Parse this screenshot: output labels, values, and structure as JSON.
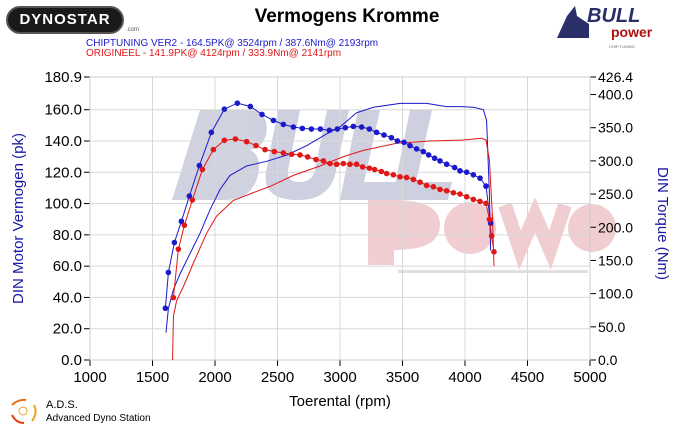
{
  "header": {
    "title": "Vermogens Kromme",
    "logo_left": "DYNOSTAR",
    "logo_left_suffix": ".com",
    "logo_right_top": "BULL",
    "logo_right_bottom": "power",
    "logo_right_sub": "CHIP TUNING"
  },
  "footer": {
    "brand": "A.D.S.",
    "brand_full": "Advanced Dyno Station"
  },
  "colors": {
    "blue": "#1a1acc",
    "red": "#e01818",
    "grid": "#d8d8d8",
    "axis_label": "#1a1aa0"
  },
  "chart_data": {
    "type": "line",
    "title": "Vermogens Kromme",
    "xlabel": "Toerental (rpm)",
    "ylabel": "DIN Motor Vermogen (pk)",
    "y2label": "DIN Torque (Nm)",
    "xlim": [
      1000,
      5000
    ],
    "ylim": [
      0,
      180.9
    ],
    "y2lim": [
      0,
      426.4
    ],
    "xticks": [
      "1000",
      "1500",
      "2000",
      "2500",
      "3000",
      "3500",
      "4000",
      "4500",
      "5000"
    ],
    "yticks": [
      "0.0",
      "20.0",
      "40.0",
      "60.0",
      "80.0",
      "100.0",
      "120.0",
      "140.0",
      "160.0",
      "180.9"
    ],
    "y2ticks": [
      "0.0",
      "50.0",
      "100.0",
      "150.0",
      "200.0",
      "250.0",
      "300.0",
      "350.0",
      "400.0",
      "426.4"
    ],
    "grid": true,
    "legend": [
      {
        "text": "CHIPTUNING VER2  - 164.5PK@ 3524rpm / 387.6Nm@ 2193rpm",
        "color": "#1a1acc"
      },
      {
        "text": "ORIGINEEL  - 141.9PK@ 4124rpm / 333.9Nm@ 2141rpm",
        "color": "#e01818"
      }
    ],
    "series": [
      {
        "name": "CHIPTUNING VER2 power",
        "axis": "left",
        "color": "#1a1acc",
        "markers": false,
        "x": [
          1608,
          1627,
          1667,
          1720,
          1800,
          1880,
          1960,
          2040,
          2120,
          2253,
          2413,
          2573,
          2733,
          2893,
          3000,
          3133,
          3267,
          3480,
          3693,
          3853,
          3960,
          4067,
          4147,
          4173,
          4195,
          4205
        ],
        "y": [
          17.5,
          33,
          45,
          55,
          68,
          81,
          96,
          109,
          118,
          124,
          127,
          131,
          137,
          144.5,
          149,
          158,
          161.5,
          164,
          164,
          162,
          162,
          161.5,
          160,
          153,
          106.5,
          70
        ]
      },
      {
        "name": "ORIGINEEL power",
        "axis": "left",
        "color": "#e01818",
        "markers": false,
        "x": [
          1661,
          1667,
          1693,
          1747,
          1827,
          1933,
          2013,
          2147,
          2307,
          2440,
          2627,
          2840,
          3027,
          3187,
          3453,
          3720,
          3987,
          4133,
          4168,
          4195,
          4221,
          4232
        ],
        "y": [
          0,
          27.7,
          38,
          47,
          62,
          81,
          92,
          102,
          107,
          111,
          118,
          124,
          130,
          134,
          138.5,
          140,
          140.6,
          141.7,
          140.6,
          128,
          89.5,
          60
        ]
      },
      {
        "name": "CHIPTUNING VER2 torque",
        "axis": "right",
        "color": "#1a1acc",
        "markers": true,
        "x": [
          1603,
          1627,
          1675,
          1731,
          1795,
          1875,
          1971,
          2075,
          2179,
          2283,
          2376,
          2467,
          2547,
          2627,
          2699,
          2771,
          2843,
          2915,
          2979,
          3043,
          3107,
          3173,
          3235,
          3293,
          3352,
          3411,
          3459,
          3512,
          3560,
          3613,
          3667,
          3709,
          3757,
          3800,
          3853,
          3917,
          3960,
          4013,
          4067,
          4120,
          4168,
          4205
        ],
        "y": [
          78,
          132,
          177,
          209,
          247,
          293,
          343,
          378,
          387,
          382,
          370,
          361,
          355,
          351,
          349,
          348,
          348,
          346,
          348,
          350,
          352,
          351,
          348,
          343,
          339,
          335,
          330,
          328,
          323,
          318,
          314,
          309,
          304,
          300,
          295,
          290,
          285,
          283,
          279,
          274,
          262,
          206
        ]
      },
      {
        "name": "ORIGINEEL torque",
        "axis": "right",
        "color": "#e01818",
        "markers": true,
        "x": [
          1667,
          1707,
          1755,
          1819,
          1899,
          1987,
          2075,
          2163,
          2253,
          2328,
          2400,
          2475,
          2547,
          2613,
          2680,
          2741,
          2808,
          2867,
          2920,
          2973,
          3027,
          3080,
          3133,
          3181,
          3235,
          3277,
          3331,
          3373,
          3427,
          3480,
          3533,
          3587,
          3640,
          3693,
          3747,
          3800,
          3853,
          3907,
          3960,
          4013,
          4067,
          4120,
          4168,
          4195,
          4213,
          4232
        ],
        "y": [
          94,
          167,
          203,
          241,
          287,
          317,
          331,
          333,
          329,
          323,
          317,
          314,
          312,
          310,
          309,
          306,
          302,
          300,
          296,
          295,
          296,
          295,
          295,
          291,
          289,
          287,
          284,
          281,
          279,
          276,
          275,
          272,
          268,
          263,
          261,
          257,
          255,
          252,
          250,
          246,
          242,
          239,
          236,
          212,
          187,
          163
        ]
      }
    ]
  }
}
